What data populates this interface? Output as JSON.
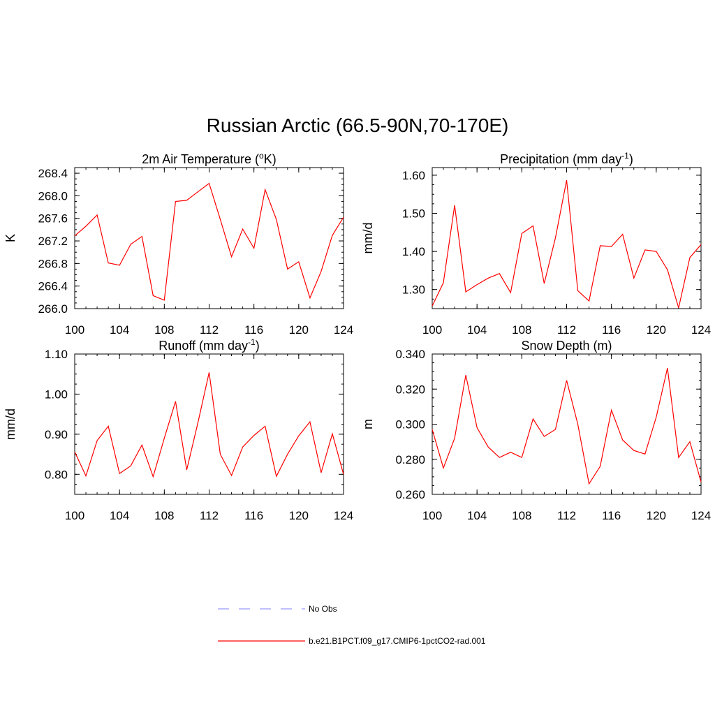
{
  "title": "Russian Arctic (66.5-90N,70-170E)",
  "chart_data": [
    {
      "type": "line",
      "title": {
        "main": "2m Air Temperature (",
        "sup": "o",
        "tail": "K)"
      },
      "ylabel": "K",
      "x": [
        100,
        101,
        102,
        103,
        104,
        105,
        106,
        107,
        108,
        109,
        110,
        111,
        112,
        113,
        114,
        115,
        116,
        117,
        118,
        119,
        120,
        121,
        122,
        123,
        124
      ],
      "xlim": [
        100,
        124
      ],
      "xticks": [
        100,
        104,
        108,
        112,
        116,
        120,
        124
      ],
      "ylim": [
        266.0,
        268.5
      ],
      "yticks": [
        266.0,
        266.4,
        266.8,
        267.2,
        267.6,
        268.0,
        268.4
      ],
      "ytick_labels": [
        "266.0",
        "266.4",
        "266.8",
        "267.2",
        "267.6",
        "268.0",
        "268.4"
      ],
      "series": [
        {
          "name": "b.e21.B1PCT.f09_g17.CMIP6-1pctCO2-rad.001",
          "color": "#ff0000",
          "values": [
            267.29,
            267.46,
            267.66,
            266.81,
            266.77,
            267.14,
            267.28,
            266.23,
            266.15,
            267.9,
            267.92,
            268.07,
            268.22,
            267.58,
            266.92,
            267.41,
            267.07,
            268.11,
            267.58,
            266.7,
            266.83,
            266.19,
            266.66,
            267.3,
            267.62
          ]
        }
      ]
    },
    {
      "type": "line",
      "title": {
        "main": "Precipitation (mm day",
        "sup": "-1",
        "tail": ")"
      },
      "ylabel": "mm/d",
      "x": [
        100,
        101,
        102,
        103,
        104,
        105,
        106,
        107,
        108,
        109,
        110,
        111,
        112,
        113,
        114,
        115,
        116,
        117,
        118,
        119,
        120,
        121,
        122,
        123,
        124
      ],
      "xlim": [
        100,
        124
      ],
      "xticks": [
        100,
        104,
        108,
        112,
        116,
        120,
        124
      ],
      "ylim": [
        1.25,
        1.62
      ],
      "yticks": [
        1.3,
        1.4,
        1.5,
        1.6
      ],
      "ytick_labels": [
        "1.30",
        "1.40",
        "1.50",
        "1.60"
      ],
      "series": [
        {
          "name": "b.e21.B1PCT.f09_g17.CMIP6-1pctCO2-rad.001",
          "color": "#ff0000",
          "values": [
            1.257,
            1.318,
            1.521,
            1.294,
            1.313,
            1.33,
            1.342,
            1.292,
            1.447,
            1.467,
            1.316,
            1.436,
            1.587,
            1.297,
            1.27,
            1.415,
            1.413,
            1.445,
            1.33,
            1.404,
            1.4,
            1.352,
            1.252,
            1.384,
            1.418
          ]
        }
      ]
    },
    {
      "type": "line",
      "title": {
        "main": "Runoff (mm day",
        "sup": "-1",
        "tail": ")"
      },
      "ylabel": "mm/d",
      "x": [
        100,
        101,
        102,
        103,
        104,
        105,
        106,
        107,
        108,
        109,
        110,
        111,
        112,
        113,
        114,
        115,
        116,
        117,
        118,
        119,
        120,
        121,
        122,
        123,
        124
      ],
      "xlim": [
        100,
        124
      ],
      "xticks": [
        100,
        104,
        108,
        112,
        116,
        120,
        124
      ],
      "ylim": [
        0.75,
        1.1
      ],
      "yticks": [
        0.8,
        0.9,
        1.0,
        1.1
      ],
      "ytick_labels": [
        "0.80",
        "0.90",
        "1.00",
        "1.10"
      ],
      "series": [
        {
          "name": "b.e21.B1PCT.f09_g17.CMIP6-1pctCO2-rad.001",
          "color": "#ff0000",
          "values": [
            0.856,
            0.796,
            0.884,
            0.92,
            0.802,
            0.821,
            0.873,
            0.794,
            0.89,
            0.982,
            0.811,
            0.929,
            1.054,
            0.85,
            0.797,
            0.868,
            0.897,
            0.92,
            0.795,
            0.85,
            0.896,
            0.931,
            0.804,
            0.901,
            0.8
          ]
        }
      ]
    },
    {
      "type": "line",
      "title": {
        "main": "Snow Depth (m)",
        "sup": "",
        "tail": ""
      },
      "ylabel": "m",
      "x": [
        100,
        101,
        102,
        103,
        104,
        105,
        106,
        107,
        108,
        109,
        110,
        111,
        112,
        113,
        114,
        115,
        116,
        117,
        118,
        119,
        120,
        121,
        122,
        123,
        124
      ],
      "xlim": [
        100,
        124
      ],
      "xticks": [
        100,
        104,
        108,
        112,
        116,
        120,
        124
      ],
      "ylim": [
        0.26,
        0.34
      ],
      "yticks": [
        0.26,
        0.28,
        0.3,
        0.32,
        0.34
      ],
      "ytick_labels": [
        "0.260",
        "0.280",
        "0.300",
        "0.320",
        "0.340"
      ],
      "series": [
        {
          "name": "b.e21.B1PCT.f09_g17.CMIP6-1pctCO2-rad.001",
          "color": "#ff0000",
          "values": [
            0.297,
            0.275,
            0.292,
            0.328,
            0.298,
            0.287,
            0.281,
            0.284,
            0.281,
            0.303,
            0.293,
            0.297,
            0.325,
            0.3,
            0.266,
            0.276,
            0.308,
            0.291,
            0.285,
            0.283,
            0.304,
            0.332,
            0.281,
            0.29,
            0.267
          ]
        }
      ]
    }
  ],
  "legend": [
    {
      "label": "No Obs",
      "color": "#9999ff",
      "dash": true
    },
    {
      "label": "b.e21.B1PCT.f09_g17.CMIP6-1pctCO2-rad.001",
      "color": "#ff0000",
      "dash": false
    }
  ]
}
